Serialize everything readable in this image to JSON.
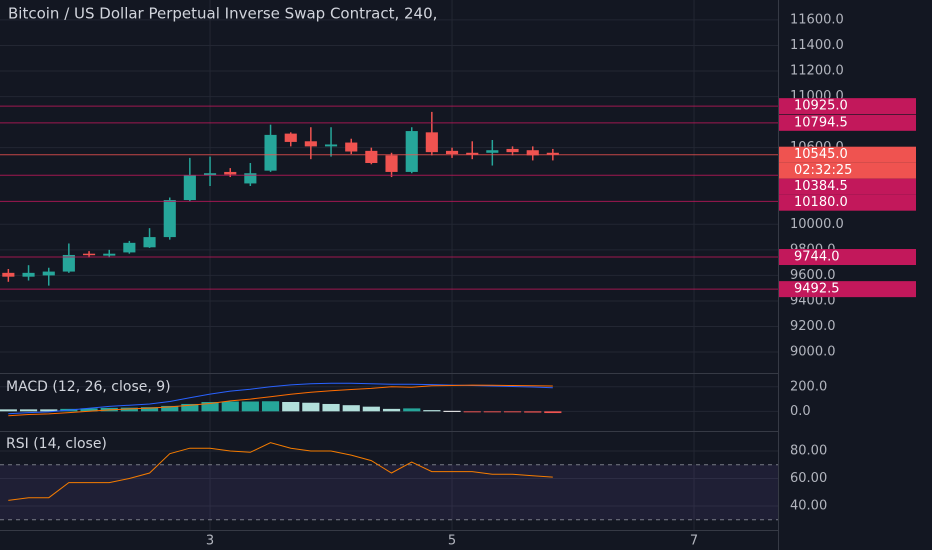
{
  "chart_data": [
    {
      "type": "candlestick",
      "title": "Bitcoin / US Dollar Perpetual Inverse Swap Contract, 240,",
      "x": [
        1.333,
        1.5,
        1.667,
        1.833,
        2,
        2.167,
        2.333,
        2.5,
        2.667,
        2.833,
        3,
        3.167,
        3.333,
        3.5,
        3.667,
        3.833,
        4,
        4.167,
        4.333,
        4.5,
        4.667,
        4.833,
        5,
        5.167,
        5.333,
        5.5,
        5.667,
        5.833
      ],
      "open": [
        9620,
        9590,
        9600,
        9630,
        9770,
        9755,
        9780,
        9820,
        9900,
        10190,
        10385,
        10410,
        10320,
        10420,
        10710,
        10650,
        10610,
        10640,
        10575,
        10540,
        10410,
        10720,
        10575,
        10560,
        10560,
        10590,
        10580,
        10560
      ],
      "high": [
        9650,
        9680,
        9660,
        9850,
        9790,
        9800,
        9870,
        9970,
        10210,
        10520,
        10530,
        10440,
        10480,
        10780,
        10720,
        10760,
        10760,
        10670,
        10600,
        10560,
        10760,
        10880,
        10600,
        10650,
        10660,
        10610,
        10610,
        10590
      ],
      "low": [
        9550,
        9560,
        9520,
        9620,
        9740,
        9740,
        9770,
        9815,
        9880,
        10180,
        10300,
        10370,
        10300,
        10410,
        10610,
        10510,
        10530,
        10550,
        10470,
        10370,
        10400,
        10540,
        10520,
        10510,
        10460,
        10540,
        10500,
        10500
      ],
      "close": [
        9590,
        9620,
        9630,
        9760,
        9760,
        9770,
        9855,
        9900,
        10190,
        10385,
        10400,
        10390,
        10400,
        10700,
        10645,
        10610,
        10625,
        10570,
        10480,
        10410,
        10730,
        10565,
        10550,
        10545,
        10580,
        10565,
        10540,
        10545
      ],
      "up_color": "#26a69a",
      "down_color": "#ef5350",
      "xlim": [
        1.264,
        7.694
      ],
      "ylim": [
        8836,
        11756
      ],
      "yticks": [
        {
          "value": 9000,
          "label": "9000.0"
        },
        {
          "value": 9200,
          "label": "9200.0"
        },
        {
          "value": 9400,
          "label": "9400.0"
        },
        {
          "value": 9600,
          "label": "9600.0"
        },
        {
          "value": 9800,
          "label": "9800.0"
        },
        {
          "value": 10000,
          "label": "10000.0"
        },
        {
          "value": 10600,
          "label": "10600.0"
        },
        {
          "value": 11000,
          "label": "11000.0"
        },
        {
          "value": 11200,
          "label": "11200.0"
        },
        {
          "value": 11400,
          "label": "11400.0"
        },
        {
          "value": 11600,
          "label": "11600.0"
        }
      ],
      "price_lines": [
        {
          "value": 10925,
          "label": "10925.0",
          "color": "#c2185b"
        },
        {
          "value": 10794.5,
          "label": "10794.5",
          "color": "#c2185b"
        },
        {
          "value": 10545,
          "label": "10545.0",
          "color": "#ef5350"
        },
        {
          "value": 10384.5,
          "label": "10384.5",
          "color": "#c2185b"
        },
        {
          "value": 10180,
          "label": "10180.0",
          "color": "#c2185b"
        },
        {
          "value": 9744,
          "label": "9744.0",
          "color": "#c2185b"
        },
        {
          "value": 9492.5,
          "label": "9492.5",
          "color": "#c2185b"
        }
      ],
      "countdown": "02:32:25"
    },
    {
      "type": "macd",
      "title": "MACD (12, 26, close, 9)",
      "x": [
        1.333,
        1.5,
        1.667,
        1.833,
        2,
        2.167,
        2.333,
        2.5,
        2.667,
        2.833,
        3,
        3.167,
        3.333,
        3.5,
        3.667,
        3.833,
        4,
        4.167,
        4.333,
        4.5,
        4.667,
        4.833,
        5,
        5.167,
        5.333,
        5.5,
        5.667,
        5.833
      ],
      "xlim": [
        1.264,
        7.694
      ],
      "ylim": [
        -152,
        304
      ],
      "yticks": [
        {
          "value": 0,
          "label": "0.0"
        },
        {
          "value": 200,
          "label": "200.0"
        }
      ],
      "histogram": {
        "values": [
          16,
          16,
          16,
          20,
          24,
          28,
          30,
          34,
          44,
          60,
          76,
          80,
          80,
          82,
          76,
          70,
          60,
          50,
          38,
          20,
          24,
          10,
          4,
          -4,
          -6,
          -8,
          -10,
          -14
        ],
        "colors": [
          "#b2dfdb",
          "#b2dfdb",
          "#b2dfdb",
          "#26a69a",
          "#26a69a",
          "#26a69a",
          "#26a69a",
          "#26a69a",
          "#26a69a",
          "#26a69a",
          "#26a69a",
          "#26a69a",
          "#26a69a",
          "#26a69a",
          "#b2dfdb",
          "#b2dfdb",
          "#b2dfdb",
          "#b2dfdb",
          "#b2dfdb",
          "#b2dfdb",
          "#26a69a",
          "#b2dfdb",
          "#ffffff",
          "#ef5350",
          "#ef5350",
          "#ef5350",
          "#ef5350",
          "#ef5350"
        ]
      },
      "series": [
        {
          "color": "#2962ff",
          "values": [
            -20,
            -10,
            -5,
            10,
            25,
            40,
            50,
            60,
            80,
            110,
            140,
            165,
            180,
            200,
            215,
            225,
            228,
            228,
            225,
            220,
            220,
            218,
            214,
            210,
            206,
            202,
            198,
            192
          ]
        },
        {
          "color": "#ff6d00",
          "values": [
            -36,
            -26,
            -21,
            -10,
            1,
            12,
            20,
            26,
            36,
            50,
            64,
            85,
            100,
            118,
            139,
            155,
            168,
            178,
            187,
            200,
            196,
            208,
            210,
            214,
            212,
            210,
            208,
            206
          ]
        }
      ]
    },
    {
      "type": "rsi",
      "title": "RSI (14, close)",
      "x": [
        1.333,
        1.5,
        1.667,
        1.833,
        2,
        2.167,
        2.333,
        2.5,
        2.667,
        2.833,
        3,
        3.167,
        3.333,
        3.5,
        3.667,
        3.833,
        4,
        4.167,
        4.333,
        4.5,
        4.667,
        4.833,
        5,
        5.167,
        5.333,
        5.5,
        5.667,
        5.833
      ],
      "values": [
        44,
        46,
        46,
        57,
        57,
        57,
        60,
        64,
        78,
        82,
        82,
        80,
        79,
        86,
        82,
        80,
        80,
        77,
        73,
        64,
        72,
        65,
        65,
        65,
        63,
        63,
        62,
        61
      ],
      "color": "#f57c00",
      "bands": [
        30,
        70
      ],
      "band_color": "#7e57c2",
      "xlim": [
        1.264,
        7.694
      ],
      "xticks": [
        3,
        5,
        7
      ],
      "ylim": [
        22.5,
        93.8
      ],
      "yticks": [
        {
          "value": 40,
          "label": "40.00"
        },
        {
          "value": 60,
          "label": "60.00"
        },
        {
          "value": 80,
          "label": "80.00"
        }
      ]
    }
  ]
}
